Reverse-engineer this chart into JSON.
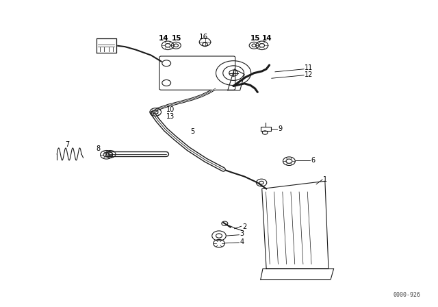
{
  "title": "",
  "bg_color": "#ffffff",
  "diagram_id": "0000-926",
  "line_color": "#1a1a1a",
  "text_color": "#000000"
}
